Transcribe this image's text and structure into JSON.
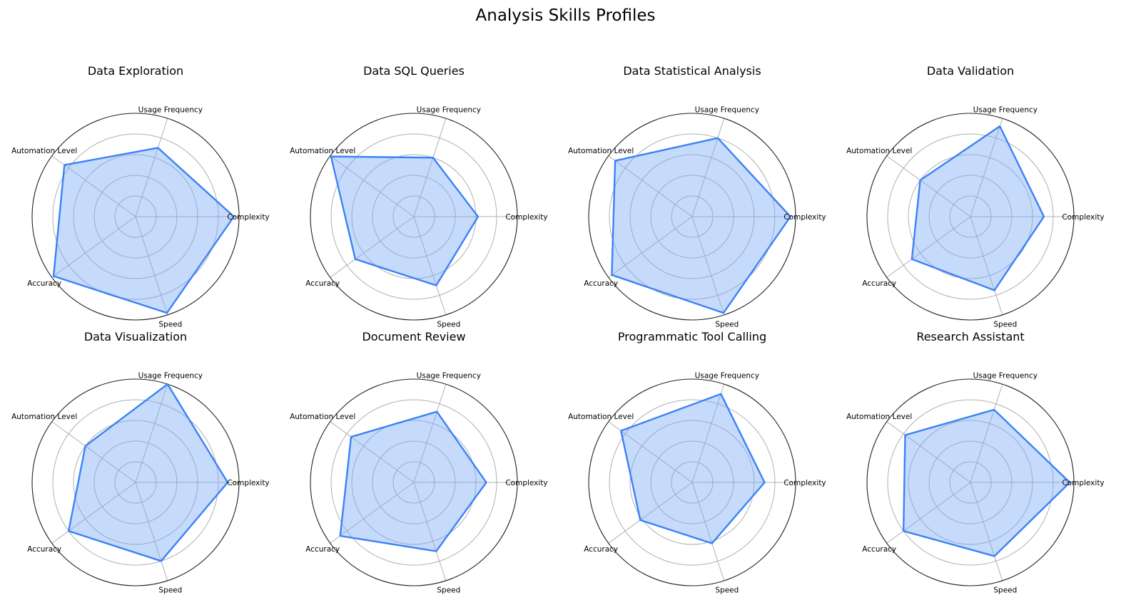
{
  "figure": {
    "title": "Analysis Skills Profiles"
  },
  "colors": {
    "line": "#3b82f6",
    "fill": "#78a9f8"
  },
  "chart_data": [
    {
      "type": "radar",
      "title": "Data Exploration",
      "axes": [
        "Complexity",
        "Usage Frequency",
        "Automation Level",
        "Accuracy",
        "Speed"
      ],
      "values": [
        0.95,
        0.7,
        0.85,
        0.98,
        0.98
      ],
      "rlim": [
        0,
        1
      ],
      "rgrid": [
        0.2,
        0.4,
        0.6,
        0.8
      ],
      "grid": true
    },
    {
      "type": "radar",
      "title": "Data SQL Queries",
      "axes": [
        "Complexity",
        "Usage Frequency",
        "Automation Level",
        "Accuracy",
        "Speed"
      ],
      "values": [
        0.62,
        0.6,
        0.99,
        0.7,
        0.7
      ],
      "rlim": [
        0,
        1
      ],
      "rgrid": [
        0.2,
        0.4,
        0.6,
        0.8
      ],
      "grid": true
    },
    {
      "type": "radar",
      "title": "Data Statistical Analysis",
      "axes": [
        "Complexity",
        "Usage Frequency",
        "Automation Level",
        "Accuracy",
        "Speed"
      ],
      "values": [
        0.95,
        0.8,
        0.92,
        0.96,
        0.98
      ],
      "rlim": [
        0,
        1
      ],
      "rgrid": [
        0.2,
        0.4,
        0.6,
        0.8
      ],
      "grid": true
    },
    {
      "type": "radar",
      "title": "Data Validation",
      "axes": [
        "Complexity",
        "Usage Frequency",
        "Automation Level",
        "Accuracy",
        "Speed"
      ],
      "values": [
        0.71,
        0.92,
        0.6,
        0.7,
        0.75
      ],
      "rlim": [
        0,
        1
      ],
      "rgrid": [
        0.2,
        0.4,
        0.6,
        0.8
      ],
      "grid": true
    },
    {
      "type": "radar",
      "title": "Data Visualization",
      "axes": [
        "Complexity",
        "Usage Frequency",
        "Automation Level",
        "Accuracy",
        "Speed"
      ],
      "values": [
        0.89,
        1.0,
        0.6,
        0.8,
        0.8
      ],
      "rlim": [
        0,
        1
      ],
      "rgrid": [
        0.2,
        0.4,
        0.6,
        0.8
      ],
      "grid": true
    },
    {
      "type": "radar",
      "title": "Document Review",
      "axes": [
        "Complexity",
        "Usage Frequency",
        "Automation Level",
        "Accuracy",
        "Speed"
      ],
      "values": [
        0.7,
        0.72,
        0.75,
        0.88,
        0.7
      ],
      "rlim": [
        0,
        1
      ],
      "rgrid": [
        0.2,
        0.4,
        0.6,
        0.8
      ],
      "grid": true
    },
    {
      "type": "radar",
      "title": "Programmatic Tool Calling",
      "axes": [
        "Complexity",
        "Usage Frequency",
        "Automation Level",
        "Accuracy",
        "Speed"
      ],
      "values": [
        0.7,
        0.9,
        0.85,
        0.62,
        0.62
      ],
      "rlim": [
        0,
        1
      ],
      "rgrid": [
        0.2,
        0.4,
        0.6,
        0.8
      ],
      "grid": true
    },
    {
      "type": "radar",
      "title": "Research Assistant",
      "axes": [
        "Complexity",
        "Usage Frequency",
        "Automation Level",
        "Accuracy",
        "Speed"
      ],
      "values": [
        0.96,
        0.74,
        0.78,
        0.8,
        0.75
      ],
      "rlim": [
        0,
        1
      ],
      "rgrid": [
        0.2,
        0.4,
        0.6,
        0.8
      ],
      "grid": true
    }
  ]
}
